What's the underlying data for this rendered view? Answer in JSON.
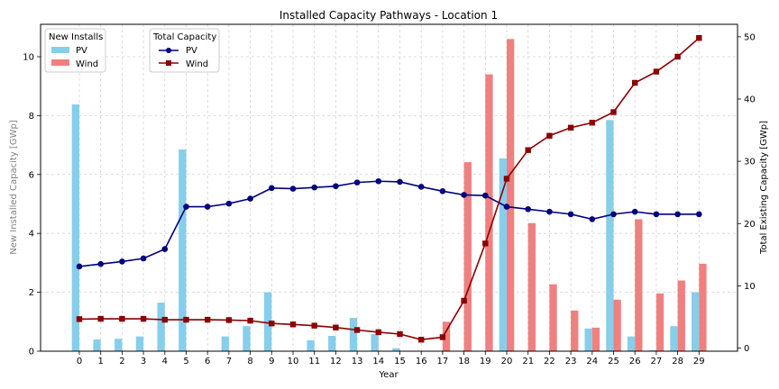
{
  "chart_data": {
    "type": "bar",
    "title": "Installed Capacity Pathways - Location 1",
    "xlabel": "Year",
    "ylabel_left": "New Installed Capacity [GWp]",
    "ylabel_right": "Total Existing Capacity [GWp]",
    "categories": [
      "0",
      "1",
      "2",
      "3",
      "4",
      "5",
      "6",
      "7",
      "8",
      "9",
      "10",
      "11",
      "12",
      "13",
      "14",
      "15",
      "16",
      "17",
      "18",
      "19",
      "20",
      "21",
      "22",
      "23",
      "24",
      "25",
      "26",
      "27",
      "28",
      "29"
    ],
    "ylim_left": [
      0,
      11.1
    ],
    "yticks_left": [
      "0",
      "2",
      "4",
      "6",
      "8",
      "10"
    ],
    "ylim_right": [
      -0.5,
      52
    ],
    "yticks_right": [
      "0",
      "10",
      "20",
      "30",
      "40",
      "50"
    ],
    "grid": true,
    "bar_series": [
      {
        "name": "PV",
        "color": "#87ceeb",
        "values": [
          8.38,
          0.4,
          0.42,
          0.5,
          1.65,
          6.85,
          0,
          0.5,
          0.85,
          2.0,
          0,
          0.37,
          0.52,
          1.13,
          0.58,
          0.1,
          0,
          0,
          0,
          0,
          6.55,
          0,
          0,
          0,
          0.77,
          7.85,
          0.5,
          0.03,
          0.85,
          2.0
        ]
      },
      {
        "name": "Wind",
        "color": "#f08080",
        "values": [
          0,
          0,
          0,
          0,
          0,
          0,
          0,
          0,
          0,
          0,
          0,
          0,
          0,
          0,
          0,
          0,
          0,
          1.0,
          6.42,
          9.4,
          10.6,
          4.35,
          2.27,
          1.38,
          0.8,
          1.75,
          4.48,
          1.96,
          2.4,
          2.97
        ]
      }
    ],
    "line_series": [
      {
        "name": "PV",
        "color": "#000080",
        "marker": "circle",
        "values": [
          13.1,
          13.5,
          13.9,
          14.4,
          15.9,
          22.7,
          22.7,
          23.2,
          24.0,
          25.7,
          25.6,
          25.8,
          26.0,
          26.6,
          26.8,
          26.7,
          25.9,
          25.2,
          24.6,
          24.5,
          22.7,
          22.3,
          21.9,
          21.5,
          20.7,
          21.5,
          21.9,
          21.5,
          21.5,
          21.5
        ]
      },
      {
        "name": "Wind",
        "color": "#8b0000",
        "marker": "square",
        "values": [
          4.65,
          4.7,
          4.7,
          4.7,
          4.55,
          4.55,
          4.55,
          4.5,
          4.4,
          3.95,
          3.8,
          3.6,
          3.3,
          2.9,
          2.55,
          2.25,
          1.35,
          1.75,
          7.6,
          16.8,
          27.2,
          31.8,
          34.1,
          35.4,
          36.2,
          37.9,
          42.6,
          44.4,
          46.8,
          49.8
        ]
      }
    ],
    "legend_bars": {
      "title": "New Installs",
      "entries": [
        "PV",
        "Wind"
      ]
    },
    "legend_lines": {
      "title": "Total Capacity",
      "entries": [
        "PV",
        "Wind"
      ]
    }
  }
}
